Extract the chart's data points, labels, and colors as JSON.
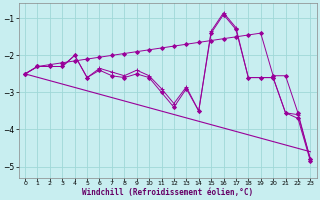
{
  "xlabel": "Windchill (Refroidissement éolien,°C)",
  "background_color": "#c8eef0",
  "grid_color": "#a0d8d8",
  "line_color": "#990099",
  "xlim": [
    -0.5,
    23.5
  ],
  "ylim": [
    -5.3,
    -0.6
  ],
  "xticks": [
    0,
    1,
    2,
    3,
    4,
    5,
    6,
    7,
    8,
    9,
    10,
    11,
    12,
    13,
    14,
    15,
    16,
    17,
    18,
    19,
    20,
    21,
    22,
    23
  ],
  "yticks": [
    -5,
    -4,
    -3,
    -2,
    -1
  ],
  "series": [
    {
      "x": [
        0,
        1,
        2,
        3,
        4,
        5,
        6,
        7,
        8,
        9,
        10,
        11,
        12,
        13,
        14,
        15,
        16,
        17,
        18,
        19,
        20,
        21,
        22,
        23
      ],
      "y": [
        -2.5,
        -2.3,
        -2.25,
        -2.2,
        -2.15,
        -2.1,
        -2.05,
        -2.0,
        -1.95,
        -1.9,
        -1.85,
        -1.8,
        -1.75,
        -1.7,
        -1.65,
        -1.6,
        -1.55,
        -1.5,
        -1.45,
        -1.4,
        -2.55,
        -2.55,
        -3.55,
        -4.8
      ],
      "marker": "D",
      "markersize": 2.0,
      "lw": 0.7
    },
    {
      "x": [
        0,
        1,
        2,
        3,
        4,
        5,
        6,
        7,
        8,
        9,
        10,
        11,
        12,
        13,
        14,
        15,
        16,
        17,
        18,
        19,
        20,
        21,
        22,
        23
      ],
      "y": [
        -2.5,
        -2.3,
        -2.3,
        -2.3,
        -2.0,
        -2.6,
        -2.35,
        -2.45,
        -2.55,
        -2.4,
        -2.55,
        -2.9,
        -3.3,
        -2.85,
        -3.5,
        -1.35,
        -0.85,
        -1.25,
        -2.6,
        -2.6,
        -2.6,
        -3.55,
        -3.6,
        -4.8
      ],
      "marker": "+",
      "markersize": 3.5,
      "lw": 0.7
    },
    {
      "x": [
        0,
        1,
        2,
        3,
        4,
        5,
        6,
        7,
        8,
        9,
        10,
        11,
        12,
        13,
        14,
        15,
        16,
        17,
        18,
        19,
        20,
        21,
        22,
        23
      ],
      "y": [
        -2.5,
        -2.3,
        -2.3,
        -2.3,
        -2.0,
        -2.6,
        -2.4,
        -2.55,
        -2.6,
        -2.5,
        -2.6,
        -3.0,
        -3.4,
        -2.9,
        -3.5,
        -1.4,
        -0.9,
        -1.3,
        -2.6,
        -2.6,
        -2.6,
        -3.55,
        -3.7,
        -4.85
      ],
      "marker": "D",
      "markersize": 2.0,
      "lw": 0.7
    },
    {
      "x": [
        0,
        23
      ],
      "y": [
        -2.5,
        -4.6
      ],
      "marker": null,
      "markersize": 0,
      "lw": 0.8
    }
  ]
}
